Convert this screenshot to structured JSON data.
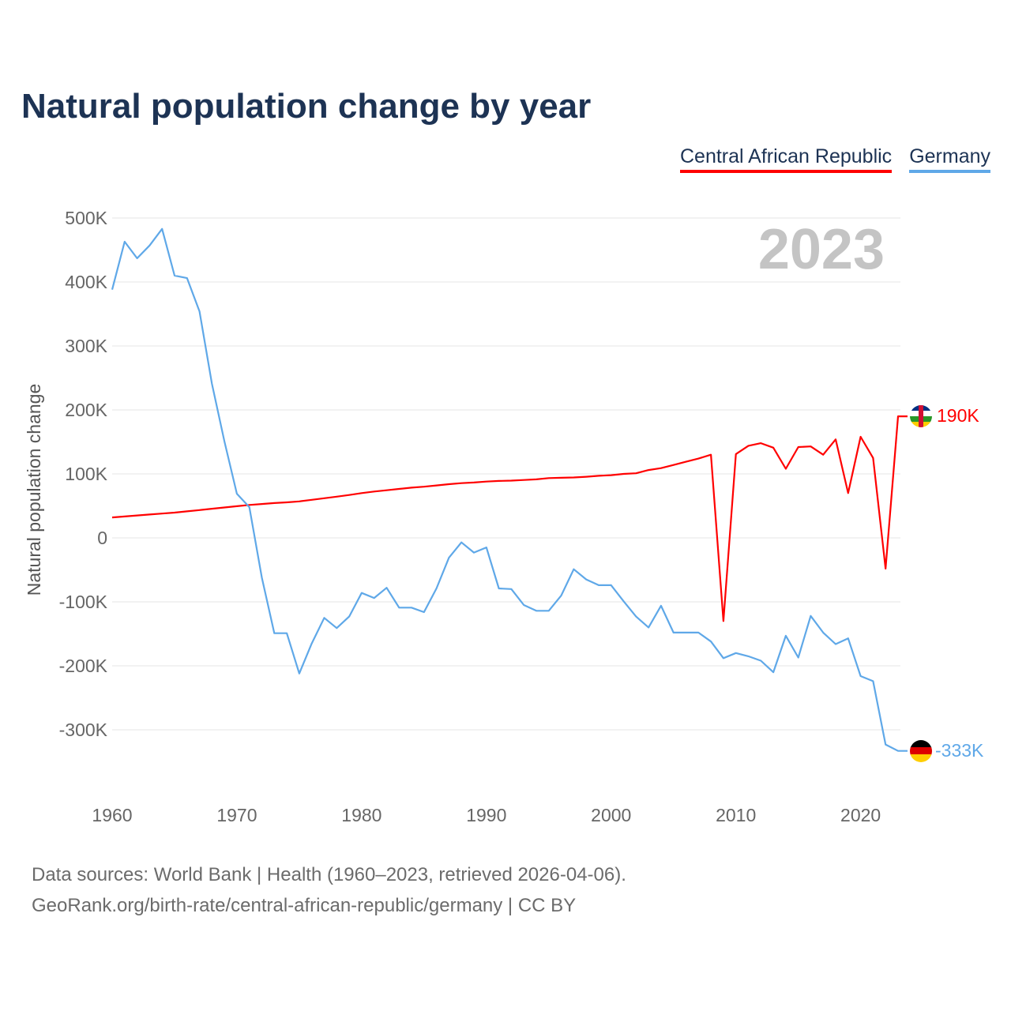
{
  "chart_data": {
    "type": "line",
    "title": "Natural population change by year",
    "xlabel": "",
    "ylabel": "Natural population change",
    "year_watermark": "2023",
    "xlim": [
      1960,
      2023
    ],
    "ylim": [
      -400000,
      500000
    ],
    "x_ticks": [
      1960,
      1970,
      1980,
      1990,
      2000,
      2010,
      2020
    ],
    "x_tick_labels": [
      "1960",
      "1970",
      "1980",
      "1990",
      "2000",
      "2010",
      "2020"
    ],
    "y_ticks": [
      500000,
      400000,
      300000,
      200000,
      100000,
      0,
      -100000,
      -200000,
      -300000
    ],
    "y_tick_labels": [
      "500K",
      "400K",
      "300K",
      "200K",
      "100K",
      "0",
      "-100K",
      "-200K",
      "-300K"
    ],
    "grid": true,
    "legend_placement": "top-right",
    "x": [
      1960,
      1961,
      1962,
      1963,
      1964,
      1965,
      1966,
      1967,
      1968,
      1969,
      1970,
      1971,
      1972,
      1973,
      1974,
      1975,
      1976,
      1977,
      1978,
      1979,
      1980,
      1981,
      1982,
      1983,
      1984,
      1985,
      1986,
      1987,
      1988,
      1989,
      1990,
      1991,
      1992,
      1993,
      1994,
      1995,
      1996,
      1997,
      1998,
      1999,
      2000,
      2001,
      2002,
      2003,
      2004,
      2005,
      2006,
      2007,
      2008,
      2009,
      2010,
      2011,
      2012,
      2013,
      2014,
      2015,
      2016,
      2017,
      2018,
      2019,
      2020,
      2021,
      2022,
      2023
    ],
    "series": [
      {
        "name": "Central African Republic",
        "color": "#ff0000",
        "end_label": "190K",
        "values": [
          32000,
          33500,
          35000,
          36500,
          38000,
          39500,
          41500,
          43500,
          45500,
          47500,
          49500,
          51500,
          53000,
          54500,
          55500,
          57000,
          59500,
          62000,
          64500,
          67000,
          70000,
          72500,
          74500,
          76500,
          78500,
          80000,
          82000,
          84000,
          85500,
          86500,
          88000,
          89000,
          89500,
          90500,
          91500,
          93500,
          94000,
          94500,
          95500,
          97000,
          98000,
          100000,
          101000,
          106000,
          109000,
          114000,
          119000,
          124000,
          130000,
          -130000,
          131000,
          144000,
          148000,
          141000,
          108000,
          142000,
          143000,
          130000,
          154000,
          70000,
          158000,
          125000,
          -48000,
          190000
        ]
      },
      {
        "name": "Germany",
        "color": "#5fa8e8",
        "end_label": "-333K",
        "values": [
          388000,
          463000,
          437000,
          457000,
          483000,
          410000,
          406000,
          354000,
          241000,
          151000,
          69000,
          48000,
          -62000,
          -149000,
          -149000,
          -212000,
          -165000,
          -125000,
          -141000,
          -123000,
          -86000,
          -94000,
          -78000,
          -109000,
          -109000,
          -116000,
          -79000,
          -31000,
          -7000,
          -23000,
          -15000,
          -79000,
          -80000,
          -105000,
          -114000,
          -114000,
          -90000,
          -49000,
          -65000,
          -74000,
          -74000,
          -99000,
          -123000,
          -140000,
          -106000,
          -148000,
          -148000,
          -148000,
          -162000,
          -188000,
          -180000,
          -185000,
          -192000,
          -210000,
          -153000,
          -187000,
          -122000,
          -148000,
          -166000,
          -157000,
          -216000,
          -224000,
          -323000,
          -333000
        ]
      }
    ]
  },
  "footer": {
    "source_line": "Data sources: World Bank | Health (1960–2023, retrieved 2026-04-06).",
    "url_line": "GeoRank.org/birth-rate/central-african-republic/germany | CC BY"
  }
}
